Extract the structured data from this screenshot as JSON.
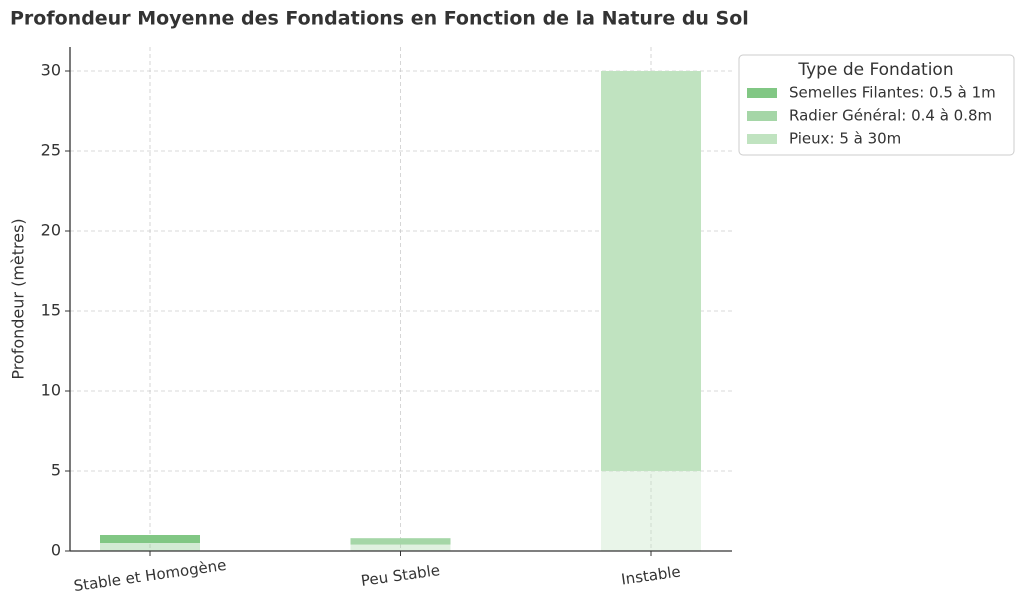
{
  "chart_data": {
    "type": "floating-bar",
    "title": "Profondeur Moyenne des Fondations en Fonction de la Nature du Sol",
    "y_label": "Profondeur (mètres)",
    "categories": [
      "Stable et Homogène",
      "Peu Stable",
      "Instable"
    ],
    "series": [
      {
        "name": "Semelles Filantes: 0.5 à 1m",
        "color": "#81c784",
        "values": [
          [
            0.5,
            1
          ],
          null,
          null
        ]
      },
      {
        "name": "Radier Général: 0.4 à 0.8m",
        "color": "#a5d6a7",
        "values": [
          null,
          [
            0.4,
            0.8
          ],
          null
        ]
      },
      {
        "name": "Pieux: 5 à 30m",
        "color": "#c0e3c0",
        "values": [
          null,
          null,
          [
            5,
            30
          ]
        ]
      }
    ],
    "legend_title": "Type de Fondation",
    "legend_position": "outside-upper-right",
    "ylim": [
      0,
      31.5
    ],
    "yticks": [
      0,
      5,
      10,
      15,
      20,
      25,
      30
    ],
    "grid": true
  }
}
